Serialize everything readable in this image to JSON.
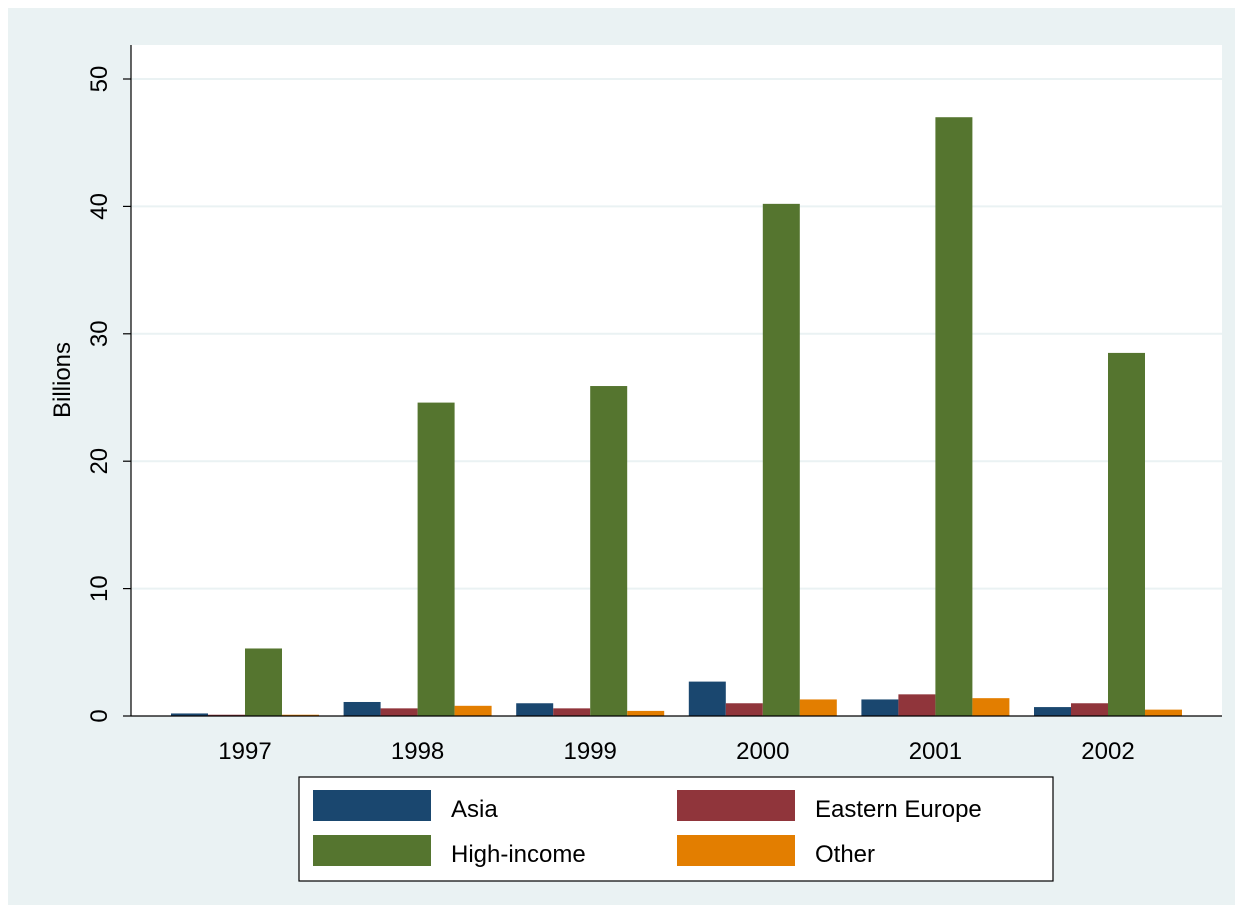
{
  "chart_data": {
    "type": "bar",
    "title": "",
    "xlabel": "",
    "ylabel": "Billions",
    "categories": [
      "1997",
      "1998",
      "1999",
      "2000",
      "2001",
      "2002"
    ],
    "ylim": [
      0,
      50
    ],
    "yticks": [
      "0",
      "10",
      "20",
      "30",
      "40",
      "50"
    ],
    "grid": true,
    "legend_position": "bottom",
    "series": [
      {
        "name": "Asia",
        "color": "#1a476f",
        "values": [
          0.2,
          1.1,
          1.0,
          2.7,
          1.3,
          0.7
        ]
      },
      {
        "name": "Eastern Europe",
        "color": "#90353b",
        "values": [
          0.1,
          0.6,
          0.6,
          1.0,
          1.7,
          1.0
        ]
      },
      {
        "name": "High-income",
        "color": "#55752f",
        "values": [
          5.3,
          24.6,
          25.9,
          40.2,
          47.0,
          28.5
        ]
      },
      {
        "name": "Other",
        "color": "#e37e00",
        "values": [
          0.1,
          0.8,
          0.4,
          1.3,
          1.4,
          0.5
        ]
      }
    ],
    "colors": {
      "outer_background": "#eaf2f3",
      "plot_background": "#ffffff",
      "gridline": "#eaf2f3",
      "axis": "#000000"
    }
  }
}
